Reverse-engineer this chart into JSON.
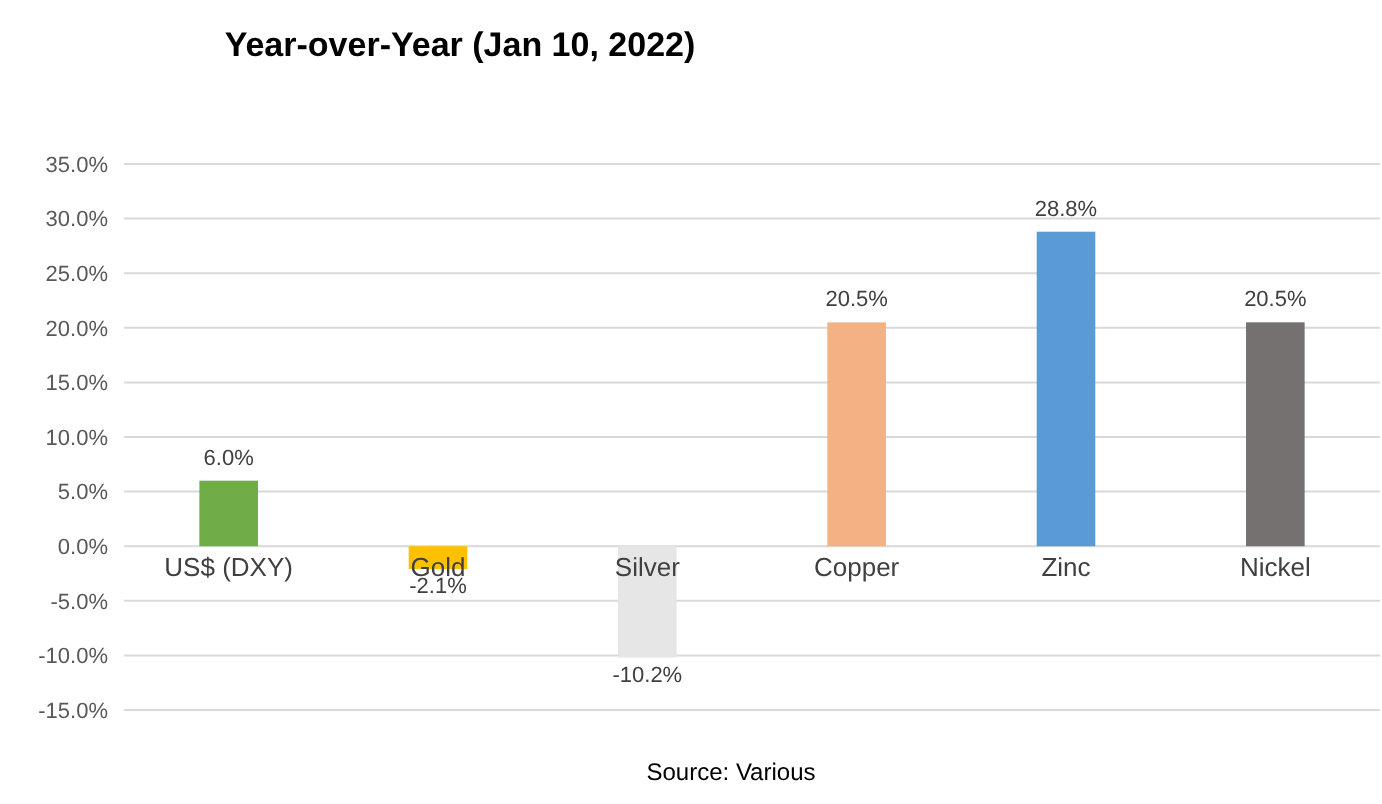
{
  "chart_data": {
    "type": "bar",
    "title": "Year-over-Year  (Jan 10, 2022)",
    "categories": [
      "US$ (DXY)",
      "Gold",
      "Silver",
      "Copper",
      "Zinc",
      "Nickel"
    ],
    "values": [
      6.0,
      -2.1,
      -10.2,
      20.5,
      28.8,
      20.5
    ],
    "colors": [
      "#70ad47",
      "#ffc000",
      "#e7e6e6",
      "#f4b183",
      "#5b9bd5",
      "#767171"
    ],
    "value_labels": [
      "6.0%",
      "-2.1%",
      "-10.2%",
      "20.5%",
      "28.8%",
      "20.5%"
    ],
    "ylim": [
      -15,
      35
    ],
    "yticks": [
      {
        "value": -15,
        "label": "-15.0%"
      },
      {
        "value": -10,
        "label": "-10.0%"
      },
      {
        "value": -5,
        "label": "-5.0%"
      },
      {
        "value": 0,
        "label": "0.0%"
      },
      {
        "value": 5,
        "label": "5.0%"
      },
      {
        "value": 10,
        "label": "10.0%"
      },
      {
        "value": 15,
        "label": "15.0%"
      },
      {
        "value": 20,
        "label": "20.0%"
      },
      {
        "value": 25,
        "label": "25.0%"
      },
      {
        "value": 30,
        "label": "30.0%"
      },
      {
        "value": 35,
        "label": "35.0%"
      }
    ],
    "grid": "y",
    "annotations": [
      "Source: Various"
    ]
  }
}
